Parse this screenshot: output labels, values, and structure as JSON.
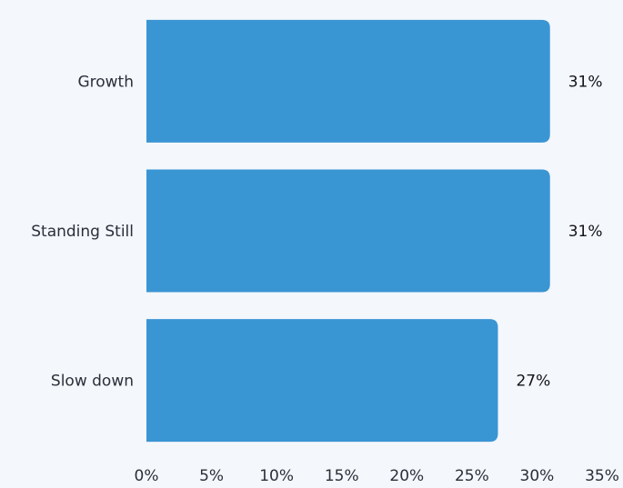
{
  "chart_data": {
    "type": "bar",
    "orientation": "horizontal",
    "categories": [
      "Growth",
      "Standing Still",
      "Slow down"
    ],
    "values": [
      31,
      31,
      27
    ],
    "value_labels": [
      "31%",
      "31%",
      "27%"
    ],
    "xlim": [
      0,
      35
    ],
    "xticks": [
      "0%",
      "5%",
      "10%",
      "15%",
      "20%",
      "25%",
      "30%",
      "35%"
    ],
    "title": "",
    "xlabel": "",
    "ylabel": "",
    "grid": false,
    "legend": "none",
    "colors": {
      "bar": "#3a95d3",
      "background": "#f4f7fb",
      "text": "#2a2f3a"
    }
  }
}
